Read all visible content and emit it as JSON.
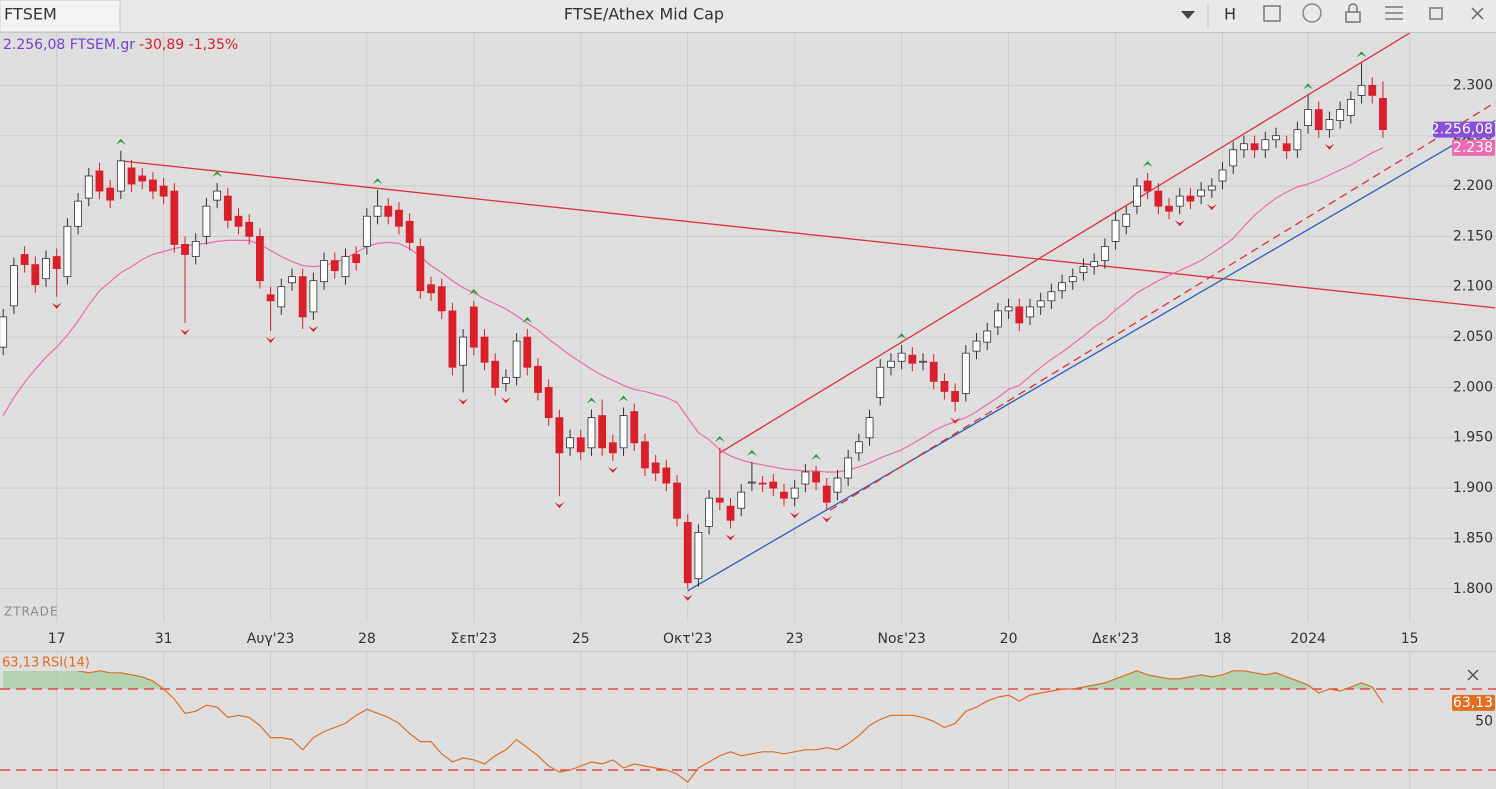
{
  "header": {
    "tab": "FTSEM",
    "title": "FTSE/Athex Mid Cap",
    "button": "H"
  },
  "chart_data": [
    {
      "type": "candlestick",
      "info": {
        "price_symbol": "2.256,08 FTSEM.gr",
        "change": "-30,89 -1,35%"
      },
      "watermark": "ZTRADE",
      "xlim": [
        -0.3,
        133.4
      ],
      "xticks": [
        {
          "value": 5,
          "label": "17"
        },
        {
          "value": 15,
          "label": "31"
        },
        {
          "value": 25,
          "label": "Αυγ'23"
        },
        {
          "value": 34,
          "label": "28"
        },
        {
          "value": 44,
          "label": "Σεπ'23"
        },
        {
          "value": 54,
          "label": "25"
        },
        {
          "value": 64,
          "label": "Οκτ'23"
        },
        {
          "value": 74,
          "label": "23"
        },
        {
          "value": 84,
          "label": "Νοε'23"
        },
        {
          "value": 94,
          "label": "20"
        },
        {
          "value": 104,
          "label": "Δεκ'23"
        },
        {
          "value": 114,
          "label": "18"
        },
        {
          "value": 122,
          "label": "2024"
        },
        {
          "value": 131.5,
          "label": "15"
        }
      ],
      "ylim": [
        1767,
        2352
      ],
      "yticks": [
        {
          "value": 2300,
          "label": "2.300"
        },
        {
          "value": 2250,
          "label": "2.250"
        },
        {
          "value": 2200,
          "label": "2.200"
        },
        {
          "value": 2150,
          "label": "2.150"
        },
        {
          "value": 2100,
          "label": "2.100"
        },
        {
          "value": 2050,
          "label": "2.050"
        },
        {
          "value": 2000,
          "label": "2.000"
        },
        {
          "value": 1950,
          "label": "1.950"
        },
        {
          "value": 1900,
          "label": "1.900"
        },
        {
          "value": 1850,
          "label": "1.850"
        },
        {
          "value": 1800,
          "label": "1.800"
        }
      ],
      "grid": true,
      "up_color": "#ffffff",
      "down_color": "#d9202a",
      "last_color": "#8a4fd8",
      "candles": {
        "open": [
          2040,
          2081,
          2132,
          2122,
          2108,
          2130,
          2110,
          2160,
          2188,
          2215,
          2198,
          2195,
          2218,
          2210,
          2206,
          2200,
          2195,
          2142,
          2130,
          2150,
          2186,
          2190,
          2170,
          2164,
          2150,
          2092,
          2080,
          2104,
          2110,
          2075,
          2105,
          2126,
          2110,
          2132,
          2140,
          2170,
          2180,
          2176,
          2165,
          2140,
          2102,
          2100,
          2076,
          2022,
          2080,
          2050,
          2026,
          2004,
          2010,
          2050,
          2021,
          2000,
          1970,
          1940,
          1950,
          1940,
          1972,
          1945,
          1940,
          1976,
          1946,
          1925,
          1920,
          1905,
          1866,
          1810,
          1862,
          1890,
          1882,
          1880,
          1905,
          1905,
          1906,
          1896,
          1890,
          1904,
          1916,
          1902,
          1896,
          1910,
          1935,
          1950,
          1990,
          2020,
          2026,
          2032,
          2025,
          2025,
          2006,
          1996,
          1994,
          2036,
          2045,
          2060,
          2076,
          2080,
          2070,
          2080,
          2086,
          2096,
          2105,
          2114,
          2120,
          2126,
          2145,
          2160,
          2180,
          2205,
          2195,
          2180,
          2180,
          2190,
          2190,
          2196,
          2205,
          2220,
          2236,
          2242,
          2236,
          2246,
          2242,
          2236,
          2260,
          2276,
          2256,
          2265,
          2270,
          2290,
          2300,
          2287
        ],
        "high": [
          2078,
          2129,
          2140,
          2130,
          2136,
          2138,
          2168,
          2193,
          2218,
          2223,
          2206,
          2235,
          2226,
          2218,
          2214,
          2208,
          2203,
          2150,
          2153,
          2188,
          2203,
          2198,
          2178,
          2172,
          2158,
          2100,
          2108,
          2118,
          2118,
          2114,
          2134,
          2134,
          2138,
          2140,
          2178,
          2196,
          2188,
          2184,
          2173,
          2148,
          2110,
          2108,
          2084,
          2058,
          2086,
          2058,
          2034,
          2018,
          2054,
          2058,
          2029,
          2008,
          1978,
          1958,
          1958,
          1978,
          1988,
          1953,
          1980,
          1984,
          1954,
          1933,
          1928,
          1913,
          1874,
          1864,
          1898,
          1940,
          1890,
          1904,
          1926,
          1912,
          1914,
          1904,
          1908,
          1924,
          1922,
          1910,
          1918,
          1938,
          1954,
          1978,
          2028,
          2034,
          2042,
          2040,
          2034,
          2033,
          2014,
          2004,
          2042,
          2054,
          2064,
          2084,
          2088,
          2088,
          2088,
          2094,
          2103,
          2112,
          2118,
          2128,
          2133,
          2148,
          2174,
          2180,
          2208,
          2213,
          2203,
          2188,
          2198,
          2198,
          2204,
          2208,
          2224,
          2244,
          2250,
          2250,
          2254,
          2258,
          2250,
          2264,
          2290,
          2284,
          2274,
          2284,
          2294,
          2322,
          2308,
          2304
        ],
        "low": [
          2032,
          2073,
          2114,
          2094,
          2100,
          2090,
          2102,
          2152,
          2180,
          2187,
          2178,
          2187,
          2194,
          2197,
          2187,
          2182,
          2134,
          2064,
          2122,
          2142,
          2178,
          2158,
          2152,
          2142,
          2098,
          2056,
          2072,
          2096,
          2058,
          2067,
          2097,
          2108,
          2102,
          2116,
          2132,
          2162,
          2162,
          2152,
          2136,
          2088,
          2086,
          2068,
          2012,
          1995,
          2032,
          2017,
          1992,
          1996,
          2002,
          2012,
          1987,
          1962,
          1892,
          1932,
          1928,
          1932,
          1932,
          1927,
          1932,
          1937,
          1912,
          1907,
          1897,
          1862,
          1800,
          1802,
          1854,
          1878,
          1860,
          1872,
          1897,
          1896,
          1892,
          1882,
          1882,
          1896,
          1898,
          1878,
          1888,
          1902,
          1927,
          1942,
          1982,
          2012,
          2018,
          2016,
          2017,
          1998,
          1988,
          1976,
          1986,
          2028,
          2037,
          2052,
          2068,
          2056,
          2062,
          2072,
          2078,
          2088,
          2097,
          2106,
          2112,
          2118,
          2137,
          2152,
          2172,
          2187,
          2172,
          2167,
          2172,
          2177,
          2182,
          2188,
          2197,
          2212,
          2228,
          2228,
          2228,
          2238,
          2227,
          2228,
          2252,
          2248,
          2248,
          2257,
          2262,
          2282,
          2282,
          2248
        ],
        "close": [
          2070,
          2121,
          2122,
          2102,
          2128,
          2118,
          2160,
          2185,
          2210,
          2195,
          2186,
          2225,
          2202,
          2205,
          2195,
          2190,
          2142,
          2132,
          2145,
          2180,
          2195,
          2166,
          2160,
          2150,
          2106,
          2086,
          2100,
          2110,
          2070,
          2106,
          2126,
          2116,
          2130,
          2124,
          2170,
          2180,
          2170,
          2160,
          2144,
          2096,
          2094,
          2076,
          2020,
          2050,
          2040,
          2025,
          2000,
          2010,
          2046,
          2020,
          1995,
          1970,
          1935,
          1950,
          1936,
          1970,
          1940,
          1935,
          1972,
          1945,
          1920,
          1915,
          1905,
          1870,
          1806,
          1856,
          1890,
          1886,
          1868,
          1896,
          1906,
          1904,
          1900,
          1890,
          1900,
          1916,
          1906,
          1886,
          1910,
          1930,
          1946,
          1970,
          2020,
          2026,
          2034,
          2024,
          2026,
          2006,
          1996,
          1986,
          2034,
          2046,
          2056,
          2076,
          2080,
          2064,
          2080,
          2086,
          2095,
          2104,
          2110,
          2120,
          2125,
          2140,
          2166,
          2172,
          2200,
          2195,
          2180,
          2175,
          2190,
          2185,
          2196,
          2200,
          2216,
          2236,
          2242,
          2236,
          2246,
          2250,
          2235,
          2256,
          2276,
          2256,
          2266,
          2276,
          2286,
          2300,
          2290,
          2256.08
        ],
        "close_label": "2.256,08"
      },
      "moving_average": {
        "color": "#f06ab0",
        "value_label": "2.238",
        "values": [
          1972,
          1990,
          2005,
          2018,
          2030,
          2040,
          2052,
          2066,
          2082,
          2096,
          2105,
          2114,
          2120,
          2127,
          2132,
          2135,
          2138,
          2140,
          2142,
          2143,
          2145,
          2146,
          2146,
          2146,
          2142,
          2136,
          2130,
          2125,
          2121,
          2120,
          2121,
          2124,
          2128,
          2134,
          2140,
          2143,
          2144,
          2143,
          2138,
          2130,
          2121,
          2114,
          2106,
          2099,
          2094,
          2088,
          2083,
          2078,
          2071,
          2064,
          2057,
          2048,
          2040,
          2032,
          2025,
          2018,
          2012,
          2007,
          2002,
          1998,
          1996,
          1993,
          1990,
          1985,
          1970,
          1955,
          1948,
          1938,
          1932,
          1928,
          1925,
          1923,
          1921,
          1919,
          1918,
          1917,
          1917,
          1916,
          1916,
          1918,
          1921,
          1925,
          1930,
          1934,
          1938,
          1944,
          1950,
          1957,
          1962,
          1966,
          1970,
          1976,
          1983,
          1990,
          1998,
          2002,
          2011,
          2020,
          2028,
          2035,
          2043,
          2051,
          2060,
          2067,
          2077,
          2085,
          2094,
          2100,
          2106,
          2111,
          2116,
          2121,
          2126,
          2133,
          2140,
          2148,
          2160,
          2171,
          2180,
          2188,
          2194,
          2199,
          2202,
          2206,
          2211,
          2216,
          2221,
          2227,
          2233,
          2238
        ]
      },
      "trendlines": [
        {
          "color": "#e0303a",
          "dashed": false,
          "points": [
            [
              11,
              2225
            ],
            [
              139.5,
              2079
            ]
          ]
        },
        {
          "color": "#e0303a",
          "dashed": false,
          "points": [
            [
              67,
              1935
            ],
            [
              131.5,
              2352
            ]
          ]
        },
        {
          "color": "#2a5fc0",
          "dashed": false,
          "points": [
            [
              64,
              1798
            ],
            [
              139.5,
              2265
            ]
          ]
        },
        {
          "color": "#e0303a",
          "dashed": true,
          "points": [
            [
              77.3,
              1878
            ],
            [
              139.5,
              2283
            ]
          ]
        }
      ],
      "up_markers": [
        11,
        20,
        35,
        44,
        49,
        55,
        58,
        67,
        70,
        76,
        84,
        107,
        122,
        127
      ],
      "down_markers": [
        5,
        17,
        25,
        29,
        43,
        47,
        52,
        57,
        64,
        68,
        74,
        77,
        89,
        110,
        113,
        124
      ]
    },
    {
      "type": "line",
      "name": "RSI(14)",
      "value_label": "63,13",
      "color": "#e07020",
      "fill": "#9fd09f",
      "ylim": [
        20,
        90
      ],
      "yticks": [
        50
      ],
      "levels": [
        70,
        30
      ],
      "values": [
        80,
        81,
        80,
        79,
        80,
        81,
        80,
        79,
        78,
        79,
        78,
        78,
        77,
        76,
        74,
        70,
        65,
        58,
        59,
        62,
        61,
        56,
        57,
        56,
        52,
        46,
        46,
        45,
        40,
        46,
        49,
        51,
        53,
        57,
        60,
        58,
        56,
        53,
        48,
        44,
        44,
        38,
        34,
        36,
        35,
        33,
        37,
        40,
        45,
        41,
        37,
        32,
        29,
        30,
        32,
        34,
        33,
        35,
        31,
        33,
        32,
        31,
        30,
        28,
        24,
        31,
        34,
        37,
        39,
        37,
        38,
        39,
        39,
        38,
        39,
        40,
        40,
        41,
        40,
        43,
        47,
        52,
        55,
        57,
        57,
        57,
        56,
        54,
        51,
        53,
        59,
        61,
        64,
        66,
        67,
        64,
        67,
        68,
        69,
        70,
        70,
        71,
        72,
        73,
        75,
        77,
        79,
        77,
        76,
        75,
        75,
        76,
        77,
        76,
        77,
        79,
        79,
        78,
        77,
        78,
        76,
        74,
        72,
        68,
        70,
        69,
        71,
        73,
        71,
        63.13
      ]
    }
  ]
}
